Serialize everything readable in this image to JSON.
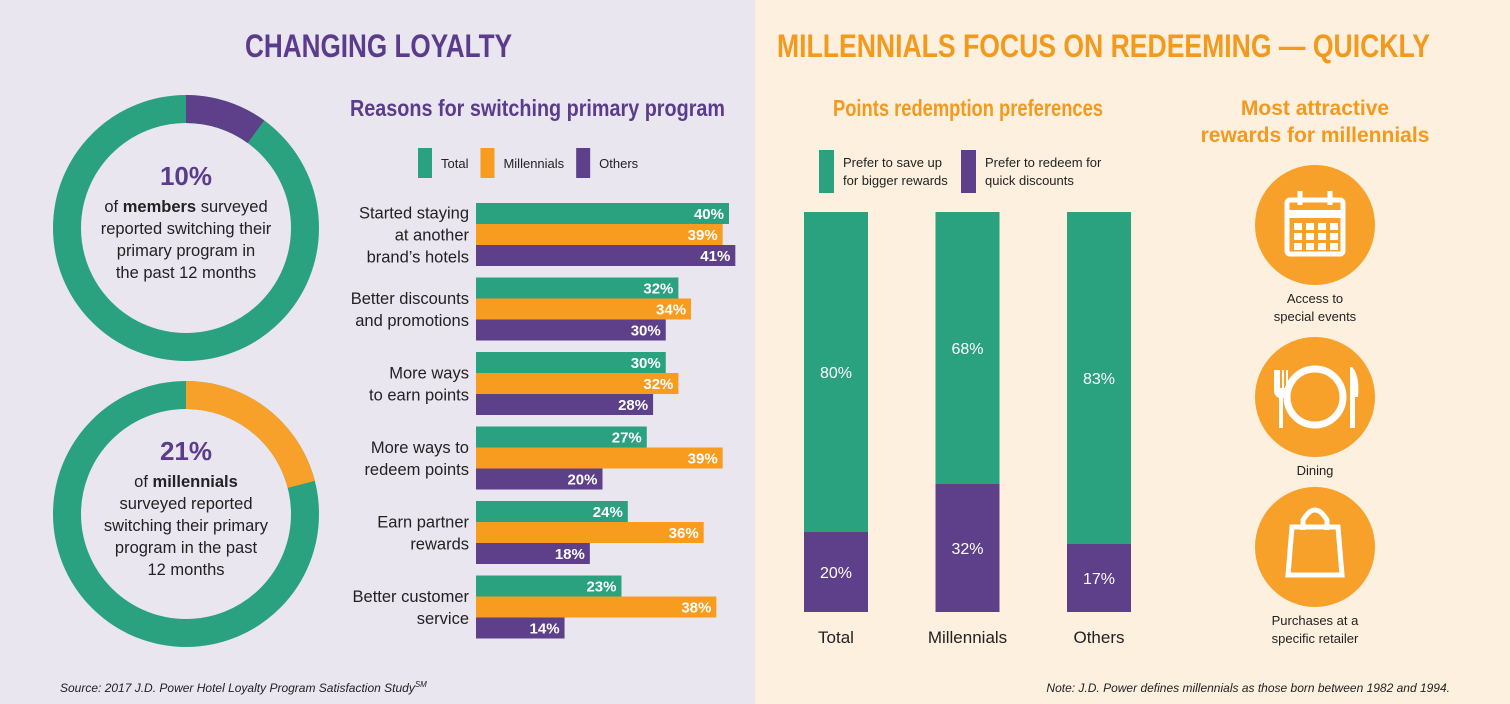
{
  "left_title": "CHANGING LOYALTY",
  "right_title": "MILLENNIALS FOCUS ON REDEEMING — QUICKLY",
  "chart_data": [
    {
      "type": "donut",
      "values": [
        10
      ],
      "value_labels": [
        "10%"
      ],
      "lim": [
        0,
        100
      ],
      "color": "#5e3f8a",
      "track_color": "#2aa17f",
      "caption_lines": [
        [
          "of",
          "members",
          "surveyed"
        ],
        [
          "reported switching their"
        ],
        [
          "primary program in"
        ],
        [
          "the past 12 months"
        ]
      ]
    },
    {
      "type": "donut",
      "values": [
        21
      ],
      "value_labels": [
        "21%"
      ],
      "lim": [
        0,
        100
      ],
      "color": "#f7a12b",
      "track_color": "#2aa17f",
      "caption_lines": [
        [
          "of",
          "millennials"
        ],
        [
          "surveyed reported"
        ],
        [
          "switching their primary"
        ],
        [
          "program in the past"
        ],
        [
          "12 months"
        ]
      ]
    },
    {
      "type": "hbar",
      "title": "Reasons for switching primary program",
      "categories": [
        "Started staying\nat another\nbrand’s hotels",
        "Better discounts\nand promotions",
        "More ways\nto earn points",
        "More ways to\nredeem points",
        "Earn partner\nrewards",
        "Better customer\nservice"
      ],
      "xlim": [
        0,
        40
      ],
      "series": [
        {
          "name": "Total",
          "color": "#2aa17f",
          "values": [
            40,
            32,
            30,
            27,
            24,
            23
          ],
          "value_labels": [
            "40%",
            "32%",
            "30%",
            "27%",
            "24%",
            "23%"
          ]
        },
        {
          "name": "Millennials",
          "color": "#f89c20",
          "values": [
            39,
            34,
            32,
            39,
            36,
            38
          ],
          "value_labels": [
            "39%",
            "34%",
            "32%",
            "39%",
            "36%",
            "38%"
          ]
        },
        {
          "name": "Others",
          "color": "#5e3f8a",
          "values": [
            41,
            30,
            28,
            20,
            18,
            14
          ],
          "value_labels": [
            "41%",
            "30%",
            "28%",
            "20%",
            "18%",
            "14%"
          ]
        }
      ]
    },
    {
      "type": "stacked",
      "title": "Points redemption preferences",
      "categories": [
        "Total",
        "Millennials",
        "Others"
      ],
      "ylim": [
        0,
        100
      ],
      "series": [
        {
          "name": "Prefer to save up\nfor bigger rewards",
          "color": "#2aa17f",
          "values": [
            80,
            68,
            83
          ],
          "value_labels": [
            "80%",
            "68%",
            "83%"
          ]
        },
        {
          "name": "Prefer to redeem for\nquick discounts",
          "color": "#5e3f8a",
          "values": [
            20,
            32,
            17
          ],
          "value_labels": [
            "20%",
            "32%",
            "17%"
          ]
        }
      ]
    }
  ],
  "rewards": {
    "title": "Most attractive\nrewards for millennials",
    "items": [
      "Access to\nspecial events",
      "Dining",
      "Purchases at a\nspecific retailer"
    ]
  },
  "source": "Source: 2017 J.D. Power Hotel Loyalty Program Satisfaction Study",
  "source_mark": "SM",
  "note": "Note: J.D. Power defines millennials as those born between 1982 and 1994."
}
